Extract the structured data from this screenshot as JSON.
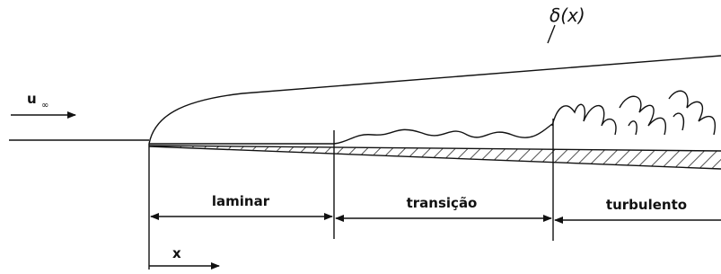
{
  "delta_label": "δ(x)",
  "freestream": {
    "symbol": "u",
    "subscript": "∞"
  },
  "regions": [
    "laminar",
    "transição",
    "turbulento"
  ],
  "x_label": "x"
}
